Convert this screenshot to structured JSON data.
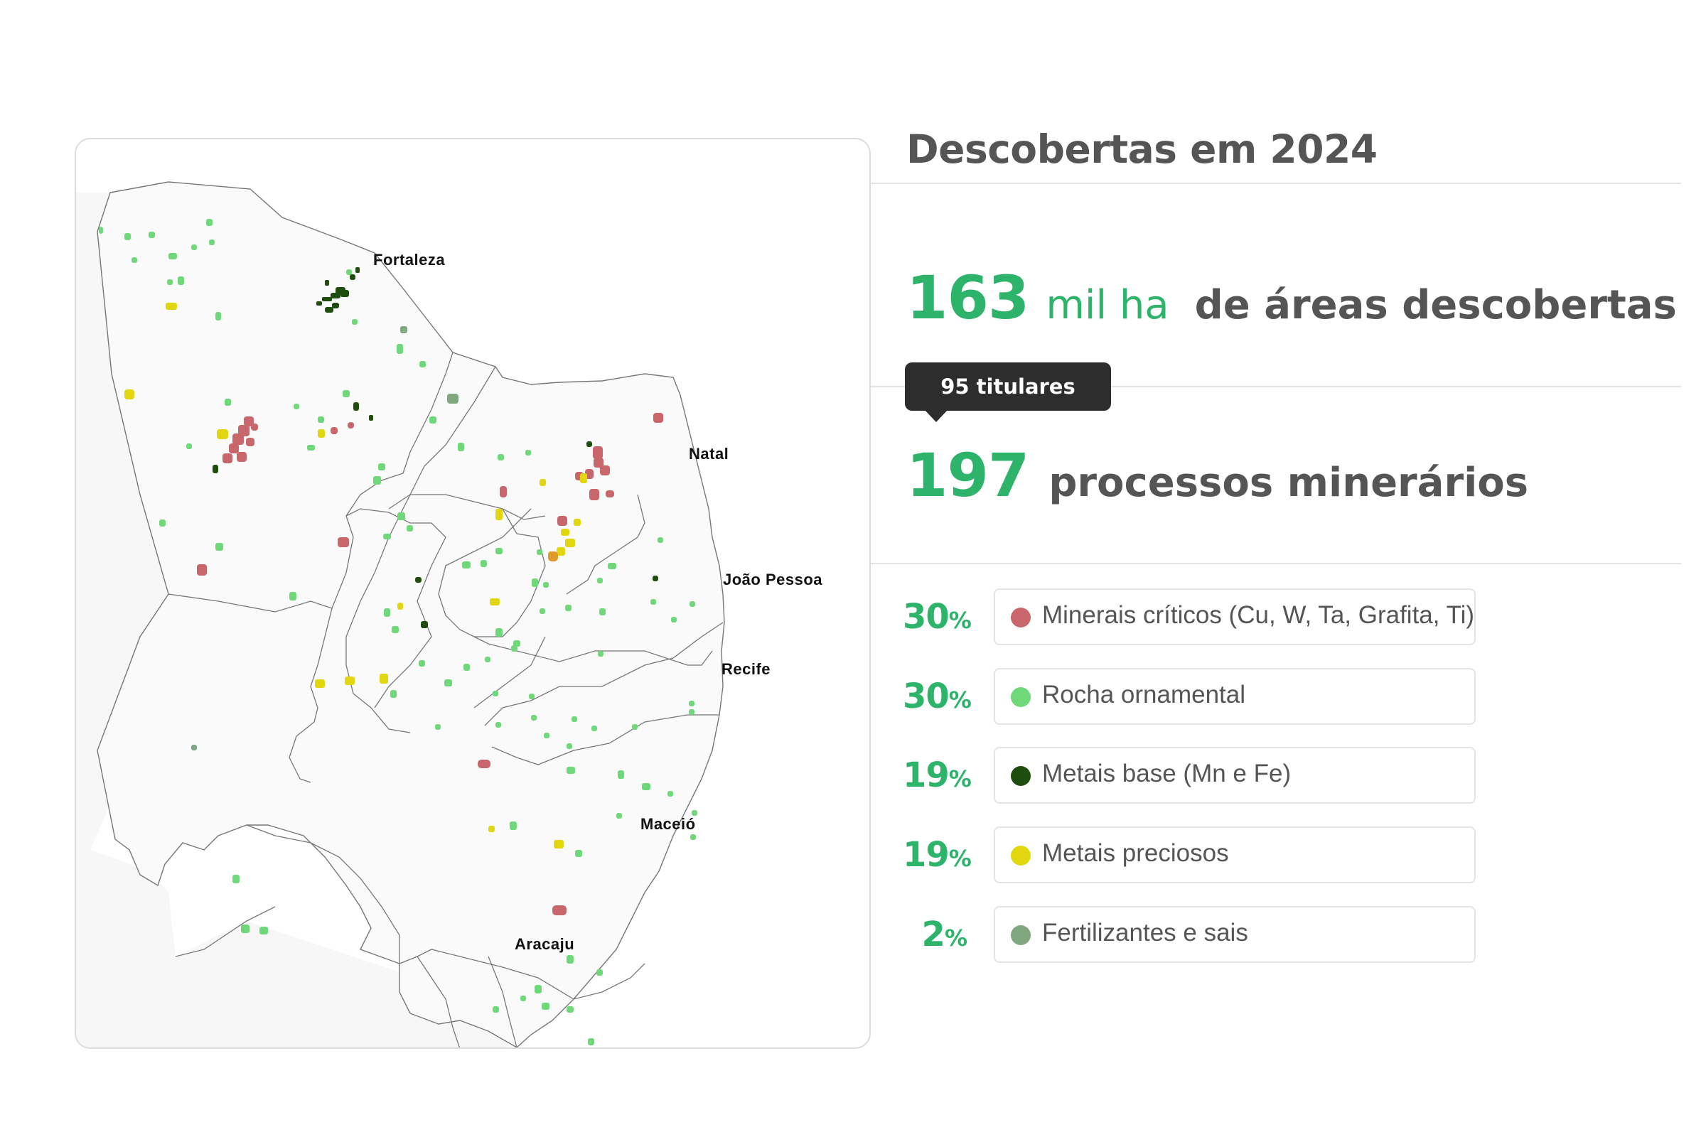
{
  "title": "Descobertas em 2024",
  "stats": {
    "area_value": "163",
    "area_unit": "mil ha",
    "area_label": "de áreas descobertas",
    "tooltip": "95 titulares",
    "processes_value": "197",
    "processes_label": "processos minerários"
  },
  "legend": [
    {
      "pct": "30",
      "sign": "%",
      "label": "Minerais críticos (Cu, W, Ta, Grafita, Ti)",
      "color": "#c8666b"
    },
    {
      "pct": "30",
      "sign": "%",
      "label": "Rocha ornamental",
      "color": "#6fd97a"
    },
    {
      "pct": "19",
      "sign": "%",
      "label": "Metais base (Mn e Fe)",
      "color": "#1f4d0d"
    },
    {
      "pct": "19",
      "sign": "%",
      "label": "Metais preciosos",
      "color": "#e2d60e"
    },
    {
      "pct": "2",
      "sign": "%",
      "label": "Fertilizantes e sais",
      "color": "#7fa87e"
    }
  ],
  "map": {
    "cities": [
      "Fortaleza",
      "Natal",
      "João Pessoa",
      "Recife",
      "Maceió",
      "Aracaju"
    ]
  }
}
